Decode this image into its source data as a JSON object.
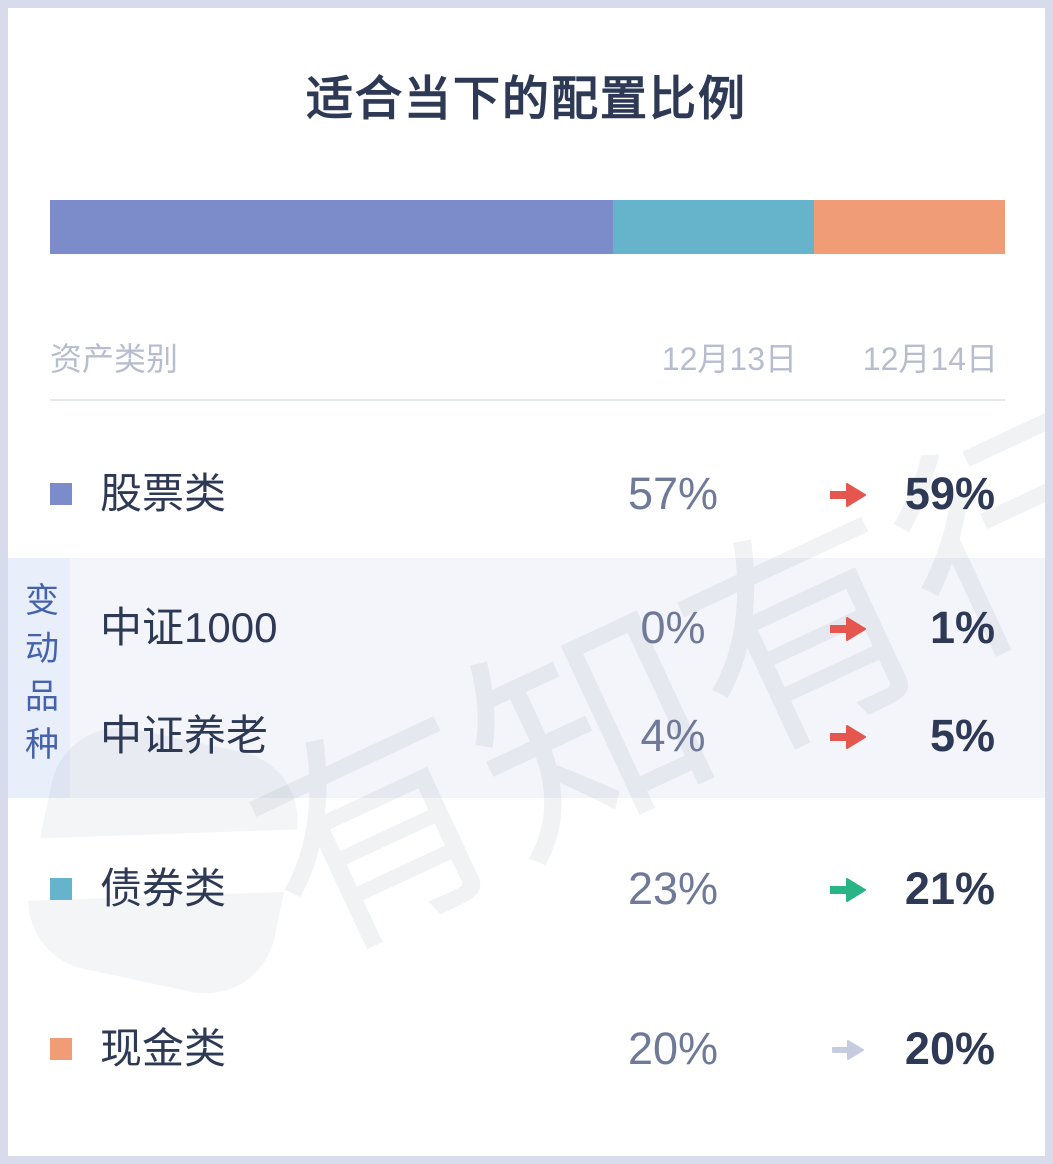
{
  "title": "适合当下的配置比例",
  "watermark": {
    "text": "有知有行"
  },
  "colors": {
    "stock": "#7C8CCB",
    "bond": "#66B4CC",
    "cash": "#EF9C77",
    "arrow_up_red": "#E4564E",
    "arrow_down_green": "#28B485",
    "arrow_flat_gray": "#C6CBE0",
    "band_background": "#F3F5FA",
    "band_strip_background": "#E8EEFA",
    "band_label_text": "#4463AC",
    "dark_text": "#2D3955",
    "old_value_text": "#6F7A99",
    "header_text": "#B7BDCE"
  },
  "chart_data": {
    "type": "bar",
    "subtype": "horizontal-stacked-single-bar",
    "title": "适合当下的配置比例",
    "categories": [
      "股票类",
      "债券类",
      "现金类"
    ],
    "series": [
      {
        "name": "股票类",
        "value": 59,
        "color": "#7C8CCB"
      },
      {
        "name": "债券类",
        "value": 21,
        "color": "#66B4CC"
      },
      {
        "name": "现金类",
        "value": 20,
        "color": "#EF9C77"
      }
    ],
    "xlim": [
      0,
      100
    ],
    "legend_position": "table-below",
    "table": {
      "headers": [
        "资产类别",
        "12月13日",
        "12月14日"
      ],
      "band_label": "变动品种",
      "rows": [
        {
          "name": "股票类",
          "old": "57%",
          "new": "59%",
          "trend": "up",
          "in_band": false
        },
        {
          "name": "中证1000",
          "old": "0%",
          "new": "1%",
          "trend": "up",
          "in_band": true
        },
        {
          "name": "中证养老",
          "old": "4%",
          "new": "5%",
          "trend": "up",
          "in_band": true
        },
        {
          "name": "债券类",
          "old": "23%",
          "new": "21%",
          "trend": "down",
          "in_band": false
        },
        {
          "name": "现金类",
          "old": "20%",
          "new": "20%",
          "trend": "flat",
          "in_band": false
        }
      ]
    }
  }
}
